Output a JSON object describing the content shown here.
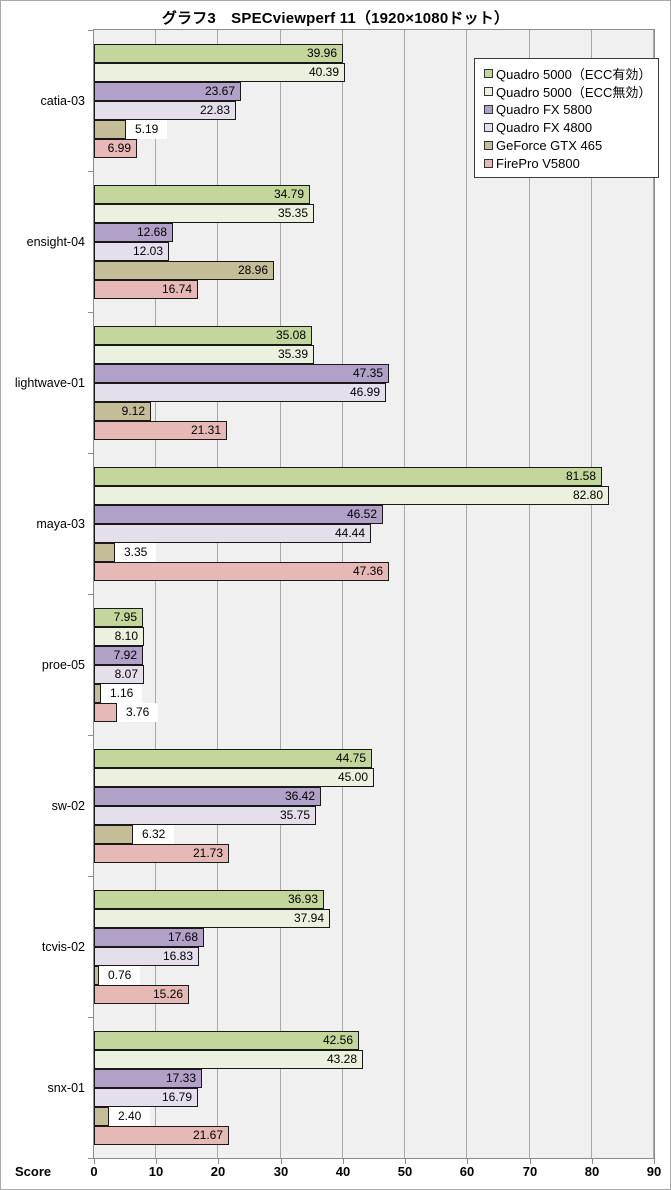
{
  "chart_data": {
    "type": "bar",
    "orientation": "horizontal",
    "title": "グラフ3　SPECviewperf 11（1920×1080ドット）",
    "xlabel": "Score",
    "xlim": [
      0,
      90
    ],
    "xticks": [
      0,
      10,
      20,
      30,
      40,
      50,
      60,
      70,
      80,
      90
    ],
    "grid": true,
    "legend_position": "top-right",
    "value_label_decimals": 2,
    "categories": [
      "catia-03",
      "ensight-04",
      "lightwave-01",
      "maya-03",
      "proe-05",
      "sw-02",
      "tcvis-02",
      "snx-01"
    ],
    "series": [
      {
        "name": "Quadro 5000（ECC有効）",
        "color": "#c3d69b",
        "values": [
          39.96,
          34.79,
          35.08,
          81.58,
          7.95,
          44.75,
          36.93,
          42.56
        ]
      },
      {
        "name": "Quadro 5000（ECC無効）",
        "color": "#ebf1de",
        "values": [
          40.39,
          35.35,
          35.39,
          82.8,
          8.1,
          45.0,
          37.94,
          43.28
        ]
      },
      {
        "name": "Quadro FX 5800",
        "color": "#b1a0c7",
        "values": [
          23.67,
          12.68,
          47.35,
          46.52,
          7.92,
          36.42,
          17.68,
          17.33
        ]
      },
      {
        "name": "Quadro FX 4800",
        "color": "#e5dfec",
        "values": [
          22.83,
          12.03,
          46.99,
          44.44,
          8.07,
          35.75,
          16.83,
          16.79
        ]
      },
      {
        "name": "GeForce GTX 465",
        "color": "#c4bd97",
        "values": [
          5.19,
          28.96,
          9.12,
          3.35,
          1.16,
          6.32,
          0.76,
          2.4
        ]
      },
      {
        "name": "FirePro V5800",
        "color": "#e6b9b7",
        "values": [
          6.99,
          16.74,
          21.31,
          47.36,
          3.76,
          21.73,
          15.26,
          21.67
        ]
      }
    ]
  },
  "colors": {
    "plot_bg": "#f0f0f0",
    "gridline": "#a8a8a8",
    "axis_border": "#8c8c8c",
    "bar_border": "#191919",
    "legend_bg": "#ffffff",
    "legend_border": "#3c3c3c",
    "swatch_border": "#333333",
    "outside_label_bg": "#ffffff",
    "text": "#000000"
  }
}
